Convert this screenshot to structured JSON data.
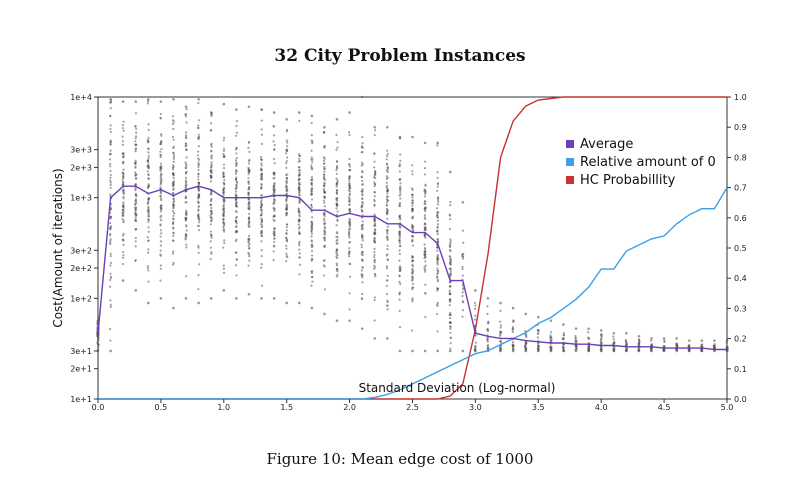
{
  "title": "32 City Problem Instances",
  "caption": "Figure 10: Mean edge cost of 1000",
  "chart_data": {
    "type": "line",
    "title": "32 City Problem Instances",
    "xlabel": "Standard Deviation (Log-normal)",
    "ylabel": "Cost(Amount of iterations)",
    "xlim": [
      0,
      5
    ],
    "ylim": [
      10,
      10000
    ],
    "y_scale": "log",
    "y2lim": [
      0,
      1
    ],
    "x_ticks": [
      "0.0",
      "0.5",
      "1.0",
      "1.5",
      "2.0",
      "2.5",
      "3.0",
      "3.5",
      "4.0",
      "4.5",
      "5.0"
    ],
    "y_ticks": [
      {
        "value": 10,
        "label": "1e+1"
      },
      {
        "value": 20,
        "label": "2e+1"
      },
      {
        "value": 30,
        "label": "3e+1"
      },
      {
        "value": 100,
        "label": "1e+2"
      },
      {
        "value": 200,
        "label": "2e+2"
      },
      {
        "value": 300,
        "label": "3e+2"
      },
      {
        "value": 1000,
        "label": "1e+3"
      },
      {
        "value": 2000,
        "label": "2e+3"
      },
      {
        "value": 3000,
        "label": "3e+3"
      },
      {
        "value": 10000,
        "label": "1e+4"
      }
    ],
    "y2_ticks": [
      "0.0",
      "0.1",
      "0.2",
      "0.3",
      "0.4",
      "0.5",
      "0.6",
      "0.7",
      "0.8",
      "0.9",
      "1.0"
    ],
    "legend": {
      "position": "right"
    },
    "colors": {
      "Average": "#6b3fb8",
      "Relative amount of 0": "#3aa0e8",
      "HC Probabillity": "#c8332f",
      "scatter": "#555555"
    },
    "x": [
      0.0,
      0.1,
      0.2,
      0.3,
      0.4,
      0.5,
      0.6,
      0.7,
      0.8,
      0.9,
      1.0,
      1.1,
      1.2,
      1.3,
      1.4,
      1.5,
      1.6,
      1.7,
      1.8,
      1.9,
      2.0,
      2.1,
      2.2,
      2.3,
      2.4,
      2.5,
      2.6,
      2.7,
      2.8,
      2.9,
      3.0,
      3.1,
      3.2,
      3.3,
      3.4,
      3.5,
      3.6,
      3.7,
      3.8,
      3.9,
      4.0,
      4.1,
      4.2,
      4.3,
      4.4,
      4.5,
      4.6,
      4.7,
      4.8,
      4.9,
      5.0
    ],
    "series": [
      {
        "name": "Average",
        "axis": "left",
        "values": [
          45,
          1000,
          1300,
          1300,
          1100,
          1200,
          1050,
          1200,
          1300,
          1200,
          1000,
          1000,
          1000,
          1000,
          1050,
          1050,
          1000,
          750,
          750,
          650,
          700,
          650,
          650,
          550,
          550,
          450,
          450,
          350,
          150,
          150,
          45,
          42,
          40,
          40,
          38,
          37,
          36,
          36,
          35,
          35,
          34,
          34,
          33,
          33,
          33,
          32,
          32,
          32,
          32,
          31,
          31
        ]
      },
      {
        "name": "Relative amount of 0",
        "axis": "right",
        "values": [
          0,
          0,
          0,
          0,
          0,
          0,
          0,
          0,
          0,
          0,
          0,
          0,
          0,
          0,
          0,
          0,
          0,
          0,
          0,
          0,
          0,
          0,
          0.005,
          0.015,
          0.03,
          0.05,
          0.07,
          0.09,
          0.11,
          0.13,
          0.15,
          0.16,
          0.18,
          0.2,
          0.22,
          0.25,
          0.27,
          0.3,
          0.33,
          0.37,
          0.43,
          0.43,
          0.49,
          0.51,
          0.53,
          0.54,
          0.58,
          0.61,
          0.63,
          0.63,
          0.7
        ]
      },
      {
        "name": "HC Probabillity",
        "axis": "right",
        "values": [
          0,
          0,
          0,
          0,
          0,
          0,
          0,
          0,
          0,
          0,
          0,
          0,
          0,
          0,
          0,
          0,
          0,
          0,
          0,
          0,
          0,
          0,
          0,
          0,
          0,
          0,
          0,
          0,
          0.01,
          0.05,
          0.23,
          0.48,
          0.8,
          0.92,
          0.97,
          0.99,
          0.995,
          1.0,
          1.0,
          1.0,
          1.0,
          1.0,
          1.0,
          1.0,
          1.0,
          1.0,
          1.0,
          1.0,
          1.0,
          1.0,
          1.0
        ]
      }
    ],
    "scatter": {
      "name": "Cost samples",
      "axis": "left",
      "note": "per x, a vertical cloud of individual run costs spanning min..max (log)",
      "min": [
        30,
        30,
        150,
        120,
        90,
        100,
        80,
        100,
        90,
        100,
        120,
        100,
        110,
        100,
        100,
        90,
        90,
        80,
        70,
        60,
        60,
        50,
        40,
        40,
        30,
        30,
        30,
        30,
        30,
        30,
        30,
        30,
        30,
        30,
        30,
        30,
        30,
        30,
        30,
        30,
        30,
        30,
        30,
        30,
        30,
        30,
        30,
        30,
        30,
        30,
        30
      ],
      "max": [
        60,
        9500,
        9000,
        9000,
        9500,
        9000,
        9500,
        8000,
        9500,
        7000,
        8500,
        7500,
        8000,
        7500,
        7000,
        6000,
        7000,
        6500,
        5000,
        6000,
        7000,
        10000,
        5000,
        5000,
        4000,
        4000,
        3500,
        3500,
        1800,
        900,
        120,
        100,
        90,
        80,
        70,
        65,
        60,
        55,
        50,
        50,
        48,
        45,
        45,
        42,
        40,
        40,
        40,
        38,
        38,
        38,
        38
      ]
    }
  }
}
